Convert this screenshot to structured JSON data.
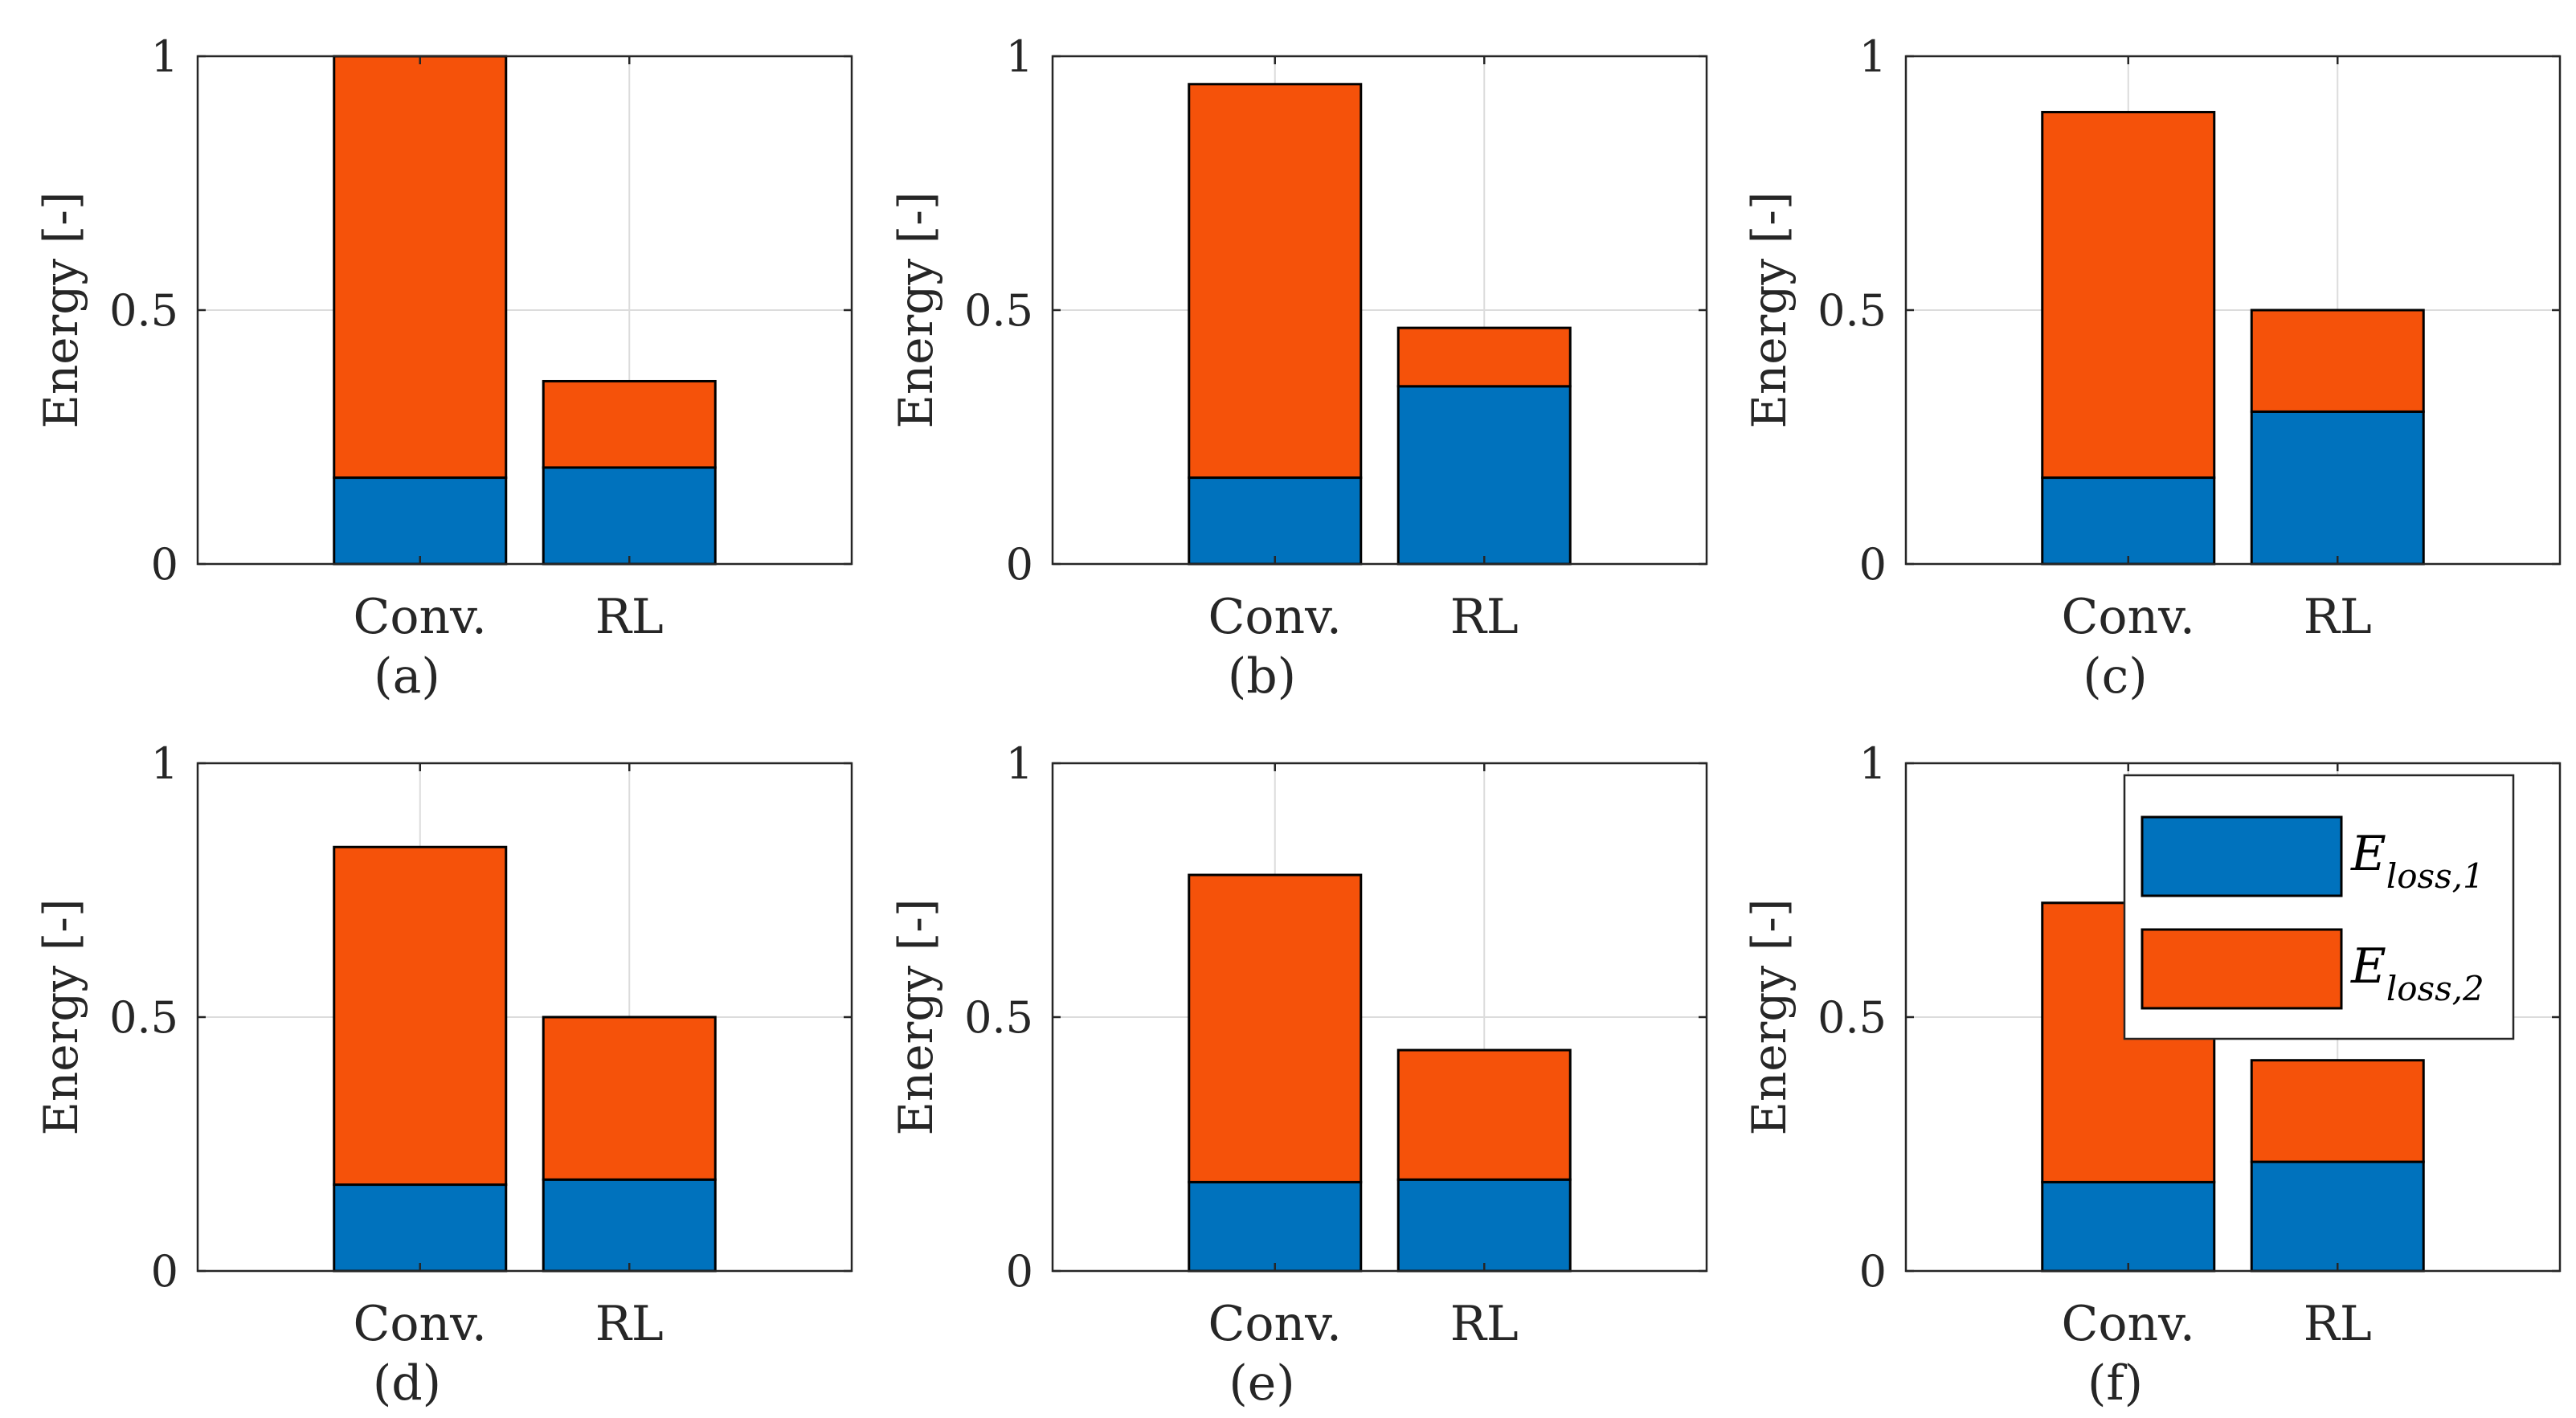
{
  "colors": {
    "loss1": "#0072BD",
    "loss2": "#F5520A"
  },
  "legend": [
    {
      "base": "E",
      "sub": "loss,1",
      "color_key": "loss1"
    },
    {
      "base": "E",
      "sub": "loss,2",
      "color_key": "loss2"
    }
  ],
  "chart_data": [
    {
      "type": "bar",
      "stacked": true,
      "label": "(a)",
      "ylabel": "Energy [-]",
      "ylim": [
        0,
        1
      ],
      "yticks": [
        "0",
        "0.5",
        "1"
      ],
      "categories": [
        "Conv.",
        "RL"
      ],
      "grid": true,
      "series": [
        {
          "name": "E_loss,1",
          "values": [
            0.17,
            0.19
          ]
        },
        {
          "name": "E_loss,2",
          "values": [
            0.83,
            0.17
          ]
        }
      ]
    },
    {
      "type": "bar",
      "stacked": true,
      "label": "(b)",
      "ylabel": "Energy [-]",
      "ylim": [
        0,
        1
      ],
      "yticks": [
        "0",
        "0.5",
        "1"
      ],
      "categories": [
        "Conv.",
        "RL"
      ],
      "grid": true,
      "series": [
        {
          "name": "E_loss,1",
          "values": [
            0.17,
            0.35
          ]
        },
        {
          "name": "E_loss,2",
          "values": [
            0.775,
            0.115
          ]
        }
      ]
    },
    {
      "type": "bar",
      "stacked": true,
      "label": "(c)",
      "ylabel": "Energy [-]",
      "ylim": [
        0,
        1
      ],
      "yticks": [
        "0",
        "0.5",
        "1"
      ],
      "categories": [
        "Conv.",
        "RL"
      ],
      "grid": true,
      "series": [
        {
          "name": "E_loss,1",
          "values": [
            0.17,
            0.3
          ]
        },
        {
          "name": "E_loss,2",
          "values": [
            0.72,
            0.2
          ]
        }
      ]
    },
    {
      "type": "bar",
      "stacked": true,
      "label": "(d)",
      "ylabel": "Energy [-]",
      "ylim": [
        0,
        1
      ],
      "yticks": [
        "0",
        "0.5",
        "1"
      ],
      "categories": [
        "Conv.",
        "RL"
      ],
      "grid": true,
      "series": [
        {
          "name": "E_loss,1",
          "values": [
            0.17,
            0.18
          ]
        },
        {
          "name": "E_loss,2",
          "values": [
            0.665,
            0.32
          ]
        }
      ]
    },
    {
      "type": "bar",
      "stacked": true,
      "label": "(e)",
      "ylabel": "Energy [-]",
      "ylim": [
        0,
        1
      ],
      "yticks": [
        "0",
        "0.5",
        "1"
      ],
      "categories": [
        "Conv.",
        "RL"
      ],
      "grid": true,
      "series": [
        {
          "name": "E_loss,1",
          "values": [
            0.175,
            0.18
          ]
        },
        {
          "name": "E_loss,2",
          "values": [
            0.605,
            0.255
          ]
        }
      ]
    },
    {
      "type": "bar",
      "stacked": true,
      "label": "(f)",
      "ylabel": "Energy [-]",
      "ylim": [
        0,
        1
      ],
      "yticks": [
        "0",
        "0.5",
        "1"
      ],
      "categories": [
        "Conv.",
        "RL"
      ],
      "grid": true,
      "series": [
        {
          "name": "E_loss,1",
          "values": [
            0.175,
            0.215
          ]
        },
        {
          "name": "E_loss,2",
          "values": [
            0.55,
            0.2
          ]
        }
      ]
    }
  ]
}
